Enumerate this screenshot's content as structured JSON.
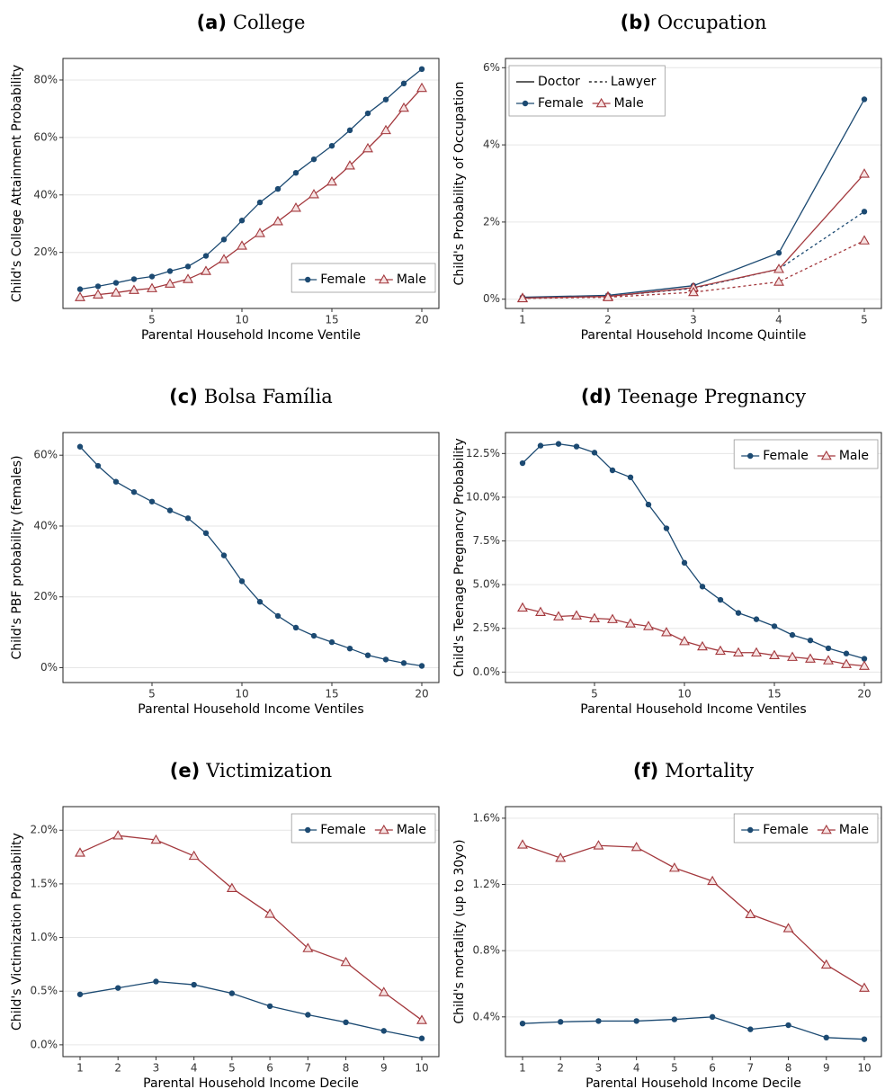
{
  "chart_data": [
    {
      "type": "line",
      "panel": "(a)",
      "title": "College",
      "x_label": "Parental Household Income Ventile",
      "y_label": "Child's College Attainment Probability",
      "x": [
        1,
        2,
        3,
        4,
        5,
        6,
        7,
        8,
        9,
        10,
        11,
        12,
        13,
        14,
        15,
        16,
        17,
        18,
        19,
        20
      ],
      "xlim": [
        0.05,
        20.95
      ],
      "xticks": [
        5,
        10,
        15,
        20
      ],
      "ylim": [
        0.5,
        87.5
      ],
      "yticks": [
        {
          "value": 20,
          "label": "20%"
        },
        {
          "value": 40,
          "label": "40%"
        },
        {
          "value": 60,
          "label": "60%"
        },
        {
          "value": 80,
          "label": "80%"
        }
      ],
      "grid": true,
      "legend": "bottom-right",
      "series": [
        {
          "name": "Female",
          "color": "#1c4a72",
          "marker": "circle",
          "values": [
            7.2,
            8.2,
            9.4,
            10.7,
            11.6,
            13.5,
            15.1,
            18.8,
            24.5,
            31.1,
            37.4,
            42.1,
            47.7,
            52.4,
            57.1,
            62.5,
            68.4,
            73.2,
            78.8,
            83.8
          ]
        },
        {
          "name": "Male",
          "color": "#a3383d",
          "marker": "triangle",
          "values": [
            4.4,
            5.3,
            6.0,
            6.9,
            7.5,
            9.1,
            10.7,
            13.5,
            17.6,
            22.3,
            26.7,
            30.8,
            35.5,
            40.2,
            44.6,
            50.2,
            56.2,
            62.5,
            70.3,
            77.2
          ]
        }
      ]
    },
    {
      "type": "line",
      "panel": "(b)",
      "title": "Occupation",
      "x_label": "Parental Household Income Quintile",
      "y_label": "Child's Probability of Occupation",
      "x": [
        1,
        2,
        3,
        4,
        5
      ],
      "xlim": [
        0.8,
        5.2
      ],
      "xticks": [
        1,
        2,
        3,
        4,
        5
      ],
      "ylim": [
        -0.24,
        6.24
      ],
      "yticks": [
        {
          "value": 0,
          "label": "0%"
        },
        {
          "value": 2,
          "label": "2%"
        },
        {
          "value": 4,
          "label": "4%"
        },
        {
          "value": 6,
          "label": "6%"
        }
      ],
      "grid": true,
      "legend": "top-left",
      "linetypes": [
        {
          "name": "Doctor",
          "dash": "solid"
        },
        {
          "name": "Lawyer",
          "dash": "dotted"
        }
      ],
      "series": [
        {
          "name": "Female",
          "color": "#1c4a72",
          "marker": "circle",
          "lines": [
            [
              0.05,
              0.1,
              0.35,
              1.2,
              5.18
            ],
            [
              0.03,
              0.07,
              0.28,
              0.78,
              2.27
            ]
          ]
        },
        {
          "name": "Male",
          "color": "#a3383d",
          "marker": "triangle",
          "lines": [
            [
              0.03,
              0.07,
              0.3,
              0.78,
              3.25
            ],
            [
              0.02,
              0.05,
              0.18,
              0.45,
              1.52
            ]
          ]
        }
      ]
    },
    {
      "type": "line",
      "panel": "(c)",
      "title": "Bolsa Família",
      "x_label": "Parental Household Income Ventiles",
      "y_label": "Child's PBF probability (females)",
      "x": [
        1,
        2,
        3,
        4,
        5,
        6,
        7,
        8,
        9,
        10,
        11,
        12,
        13,
        14,
        15,
        16,
        17,
        18,
        19,
        20
      ],
      "xlim": [
        0.05,
        20.95
      ],
      "xticks": [
        5,
        10,
        15,
        20
      ],
      "ylim": [
        -4.2,
        66.4
      ],
      "yticks": [
        {
          "value": 0,
          "label": "0%"
        },
        {
          "value": 20,
          "label": "20%"
        },
        {
          "value": 40,
          "label": "40%"
        },
        {
          "value": 60,
          "label": "60%"
        }
      ],
      "grid": true,
      "series": [
        {
          "color": "#1c4a72",
          "marker": "circle",
          "values": [
            62.4,
            57.0,
            52.5,
            49.6,
            46.9,
            44.4,
            42.2,
            38.0,
            31.7,
            24.4,
            18.6,
            14.6,
            11.3,
            9.0,
            7.2,
            5.4,
            3.5,
            2.3,
            1.3,
            0.5
          ]
        }
      ]
    },
    {
      "type": "line",
      "panel": "(d)",
      "title": "Teenage Pregnancy",
      "x_label": "Parental Household Income Ventiles",
      "y_label": "Child's Teenage Pregnancy Probability",
      "x": [
        1,
        2,
        3,
        4,
        5,
        6,
        7,
        8,
        9,
        10,
        11,
        12,
        13,
        14,
        15,
        16,
        17,
        18,
        19,
        20
      ],
      "xlim": [
        0.05,
        20.95
      ],
      "xticks": [
        5,
        10,
        15,
        20
      ],
      "ylim": [
        -0.6,
        13.7
      ],
      "yticks": [
        {
          "value": 0,
          "label": "0.0%"
        },
        {
          "value": 2.5,
          "label": "2.5%"
        },
        {
          "value": 5,
          "label": "5.0%"
        },
        {
          "value": 7.5,
          "label": "7.5%"
        },
        {
          "value": 10,
          "label": "10.0%"
        },
        {
          "value": 12.5,
          "label": "12.5%"
        }
      ],
      "grid": true,
      "legend": "top-right",
      "series": [
        {
          "name": "Female",
          "color": "#1c4a72",
          "marker": "circle",
          "values": [
            11.95,
            12.95,
            13.05,
            12.9,
            12.55,
            11.54,
            11.14,
            9.58,
            8.22,
            6.25,
            4.89,
            4.13,
            3.38,
            3.02,
            2.62,
            2.12,
            1.81,
            1.36,
            1.06,
            0.76
          ]
        },
        {
          "name": "Male",
          "color": "#a3383d",
          "marker": "triangle",
          "values": [
            3.68,
            3.43,
            3.18,
            3.23,
            3.07,
            3.02,
            2.77,
            2.62,
            2.27,
            1.76,
            1.46,
            1.21,
            1.11,
            1.11,
            0.96,
            0.86,
            0.76,
            0.66,
            0.45,
            0.35
          ]
        }
      ]
    },
    {
      "type": "line",
      "panel": "(e)",
      "title": "Victimization",
      "x_label": "Parental Household Income Decile",
      "y_label": "Child's Victimization Probability",
      "x": [
        1,
        2,
        3,
        4,
        5,
        6,
        7,
        8,
        9,
        10
      ],
      "xlim": [
        0.55,
        10.45
      ],
      "xticks": [
        1,
        2,
        3,
        4,
        5,
        6,
        7,
        8,
        9,
        10
      ],
      "ylim": [
        -0.11,
        2.22
      ],
      "yticks": [
        {
          "value": 0,
          "label": "0.0%"
        },
        {
          "value": 0.5,
          "label": "0.5%"
        },
        {
          "value": 1,
          "label": "1.0%"
        },
        {
          "value": 1.5,
          "label": "1.5%"
        },
        {
          "value": 2,
          "label": "2.0%"
        }
      ],
      "grid": true,
      "legend": "top-right",
      "series": [
        {
          "name": "Female",
          "color": "#1c4a72",
          "marker": "circle",
          "values": [
            0.47,
            0.53,
            0.59,
            0.56,
            0.48,
            0.36,
            0.28,
            0.21,
            0.13,
            0.06
          ]
        },
        {
          "name": "Male",
          "color": "#a3383d",
          "marker": "triangle",
          "values": [
            1.79,
            1.95,
            1.91,
            1.76,
            1.46,
            1.22,
            0.9,
            0.77,
            0.49,
            0.23
          ]
        }
      ]
    },
    {
      "type": "line",
      "panel": "(f)",
      "title": "Mortality",
      "x_label": "Parental Household Income Decile",
      "y_label": "Child's mortality (up to 30yo)",
      "x": [
        1,
        2,
        3,
        4,
        5,
        6,
        7,
        8,
        9,
        10
      ],
      "xlim": [
        0.55,
        10.45
      ],
      "xticks": [
        1,
        2,
        3,
        4,
        5,
        6,
        7,
        8,
        9,
        10
      ],
      "ylim": [
        0.16,
        1.67
      ],
      "yticks": [
        {
          "value": 0.4,
          "label": "0.4%"
        },
        {
          "value": 0.8,
          "label": "0.8%"
        },
        {
          "value": 1.2,
          "label": "1.2%"
        },
        {
          "value": 1.6,
          "label": "1.6%"
        }
      ],
      "grid": true,
      "legend": "top-right",
      "series": [
        {
          "name": "Female",
          "color": "#1c4a72",
          "marker": "circle",
          "values": [
            0.36,
            0.37,
            0.375,
            0.375,
            0.385,
            0.4,
            0.325,
            0.35,
            0.275,
            0.265
          ]
        },
        {
          "name": "Male",
          "color": "#a3383d",
          "marker": "triangle",
          "values": [
            1.44,
            1.36,
            1.435,
            1.425,
            1.3,
            1.22,
            1.02,
            0.935,
            0.715,
            0.575
          ]
        }
      ]
    }
  ]
}
